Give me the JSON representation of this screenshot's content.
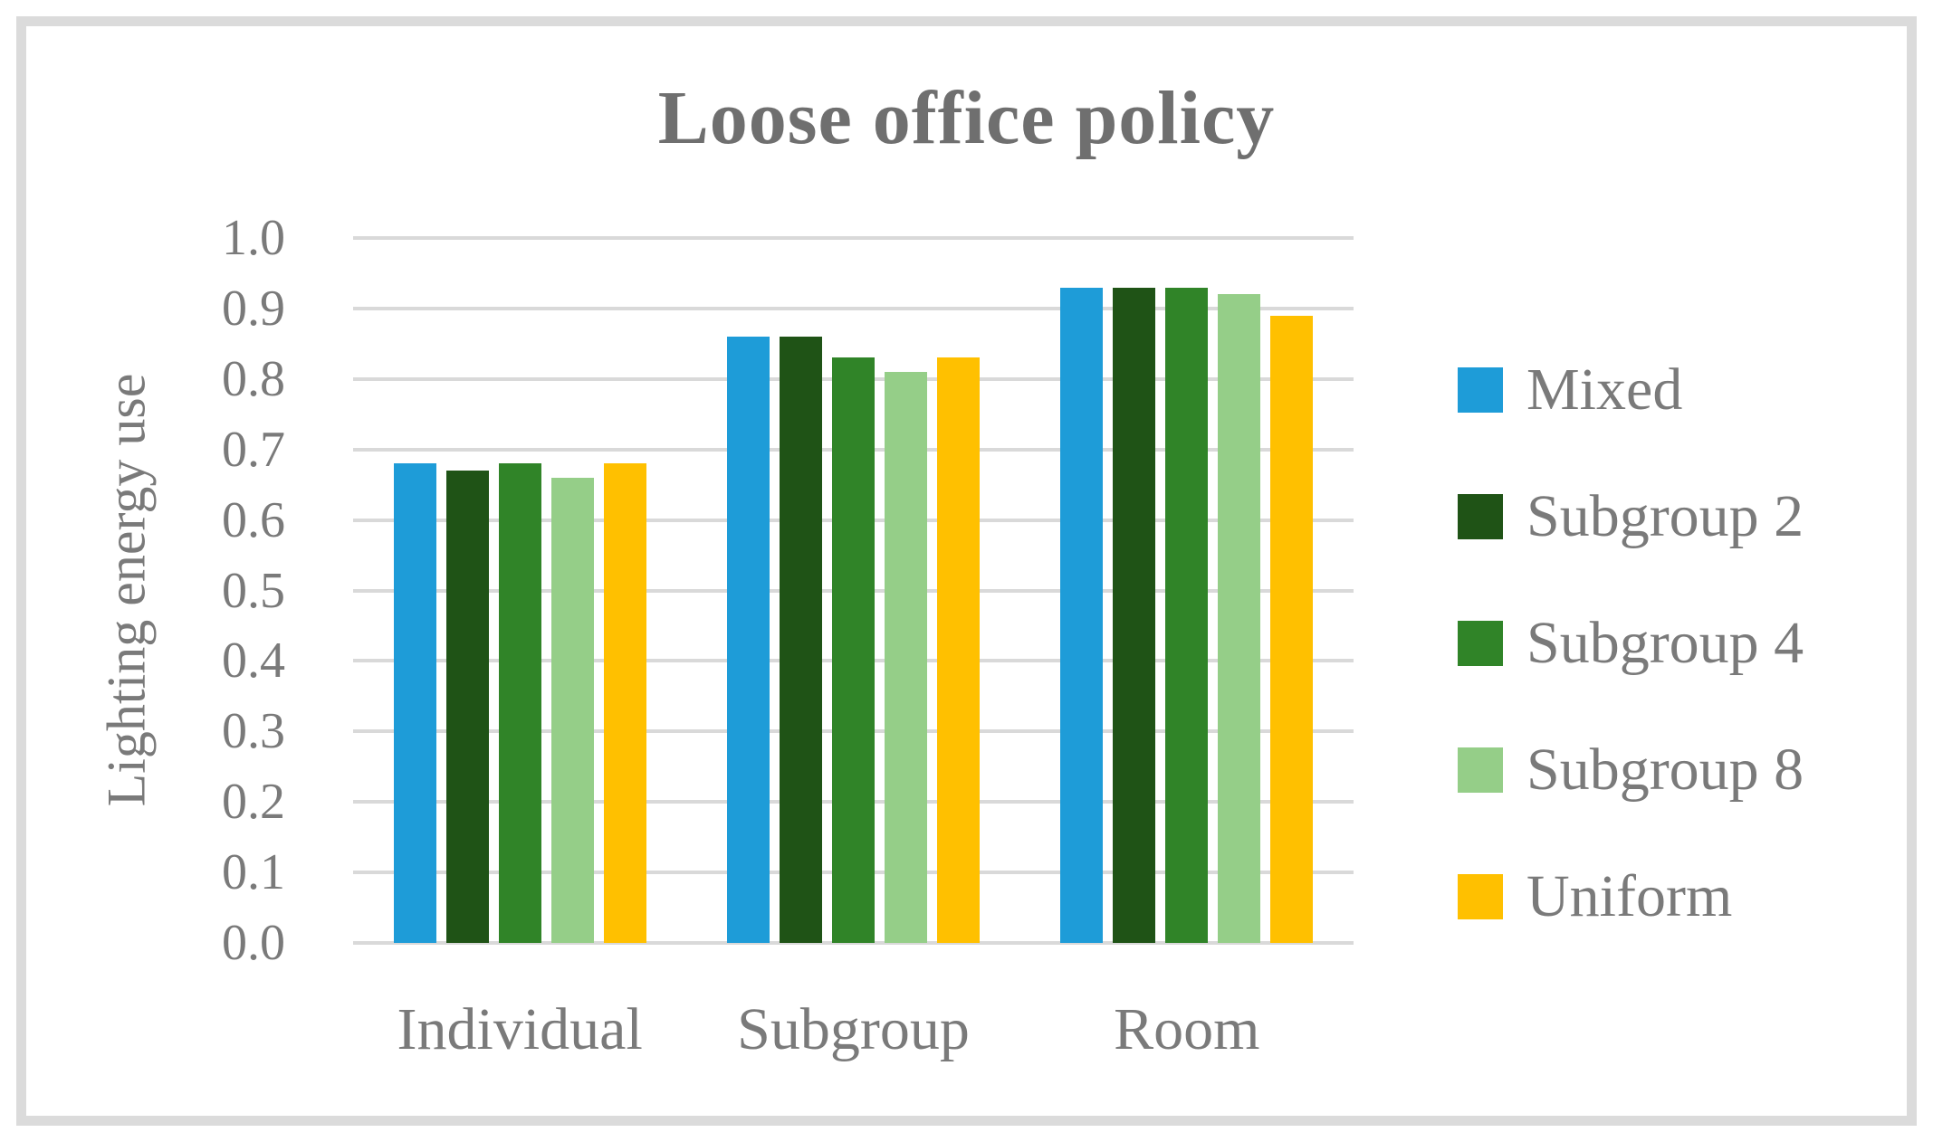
{
  "chart_data": {
    "type": "bar",
    "title": "Loose office policy",
    "xlabel": "",
    "ylabel": "Lighting energy use",
    "categories": [
      "Individual",
      "Subgroup",
      "Room"
    ],
    "series": [
      {
        "name": "Mixed",
        "color": "#1e9cd8",
        "values": [
          0.68,
          0.86,
          0.93
        ]
      },
      {
        "name": "Subgroup 2",
        "color": "#1f5316",
        "values": [
          0.67,
          0.86,
          0.93
        ]
      },
      {
        "name": "Subgroup 4",
        "color": "#308428",
        "values": [
          0.68,
          0.83,
          0.93
        ]
      },
      {
        "name": "Subgroup 8",
        "color": "#95ce88",
        "values": [
          0.66,
          0.81,
          0.92
        ]
      },
      {
        "name": "Uniform",
        "color": "#ffc000",
        "values": [
          0.68,
          0.83,
          0.89
        ]
      }
    ],
    "ylim": [
      0.0,
      1.0
    ],
    "yticks": [
      "0.0",
      "0.1",
      "0.2",
      "0.3",
      "0.4",
      "0.5",
      "0.6",
      "0.7",
      "0.8",
      "0.9",
      "1.0"
    ],
    "grid": true,
    "legend_position": "right",
    "colors": {
      "gridline": "#d9d9d9",
      "axis_text": "#7a7a7a",
      "title_text": "#6f6f6f",
      "frame_border": "#dbdbdb"
    }
  }
}
